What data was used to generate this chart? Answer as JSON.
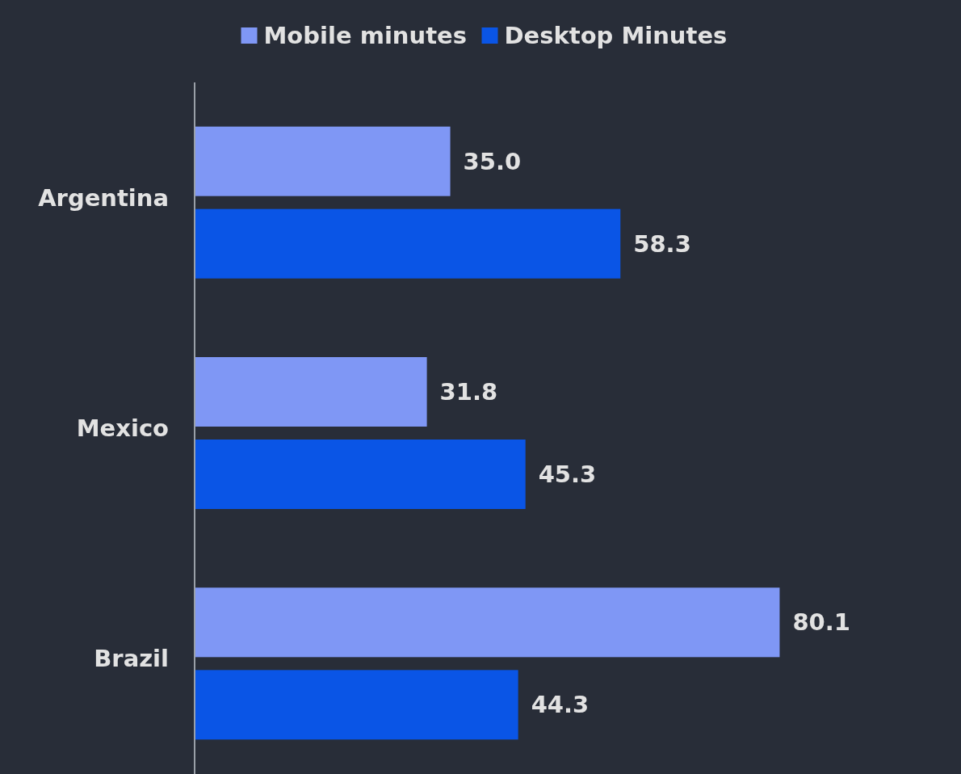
{
  "chart_data": {
    "type": "bar",
    "orientation": "horizontal",
    "categories": [
      "Argentina",
      "Mexico",
      "Brazil"
    ],
    "series": [
      {
        "name": "Mobile minutes",
        "color": "#7f97f5",
        "values": [
          35.0,
          31.8,
          80.1
        ],
        "value_labels": [
          "35.0",
          "31.8",
          "80.1"
        ]
      },
      {
        "name": "Desktop Minutes",
        "color": "#0a55e6",
        "values": [
          58.3,
          45.3,
          44.3
        ],
        "value_labels": [
          "58.3",
          "45.3",
          "44.3"
        ]
      }
    ],
    "legend": "top"
  }
}
